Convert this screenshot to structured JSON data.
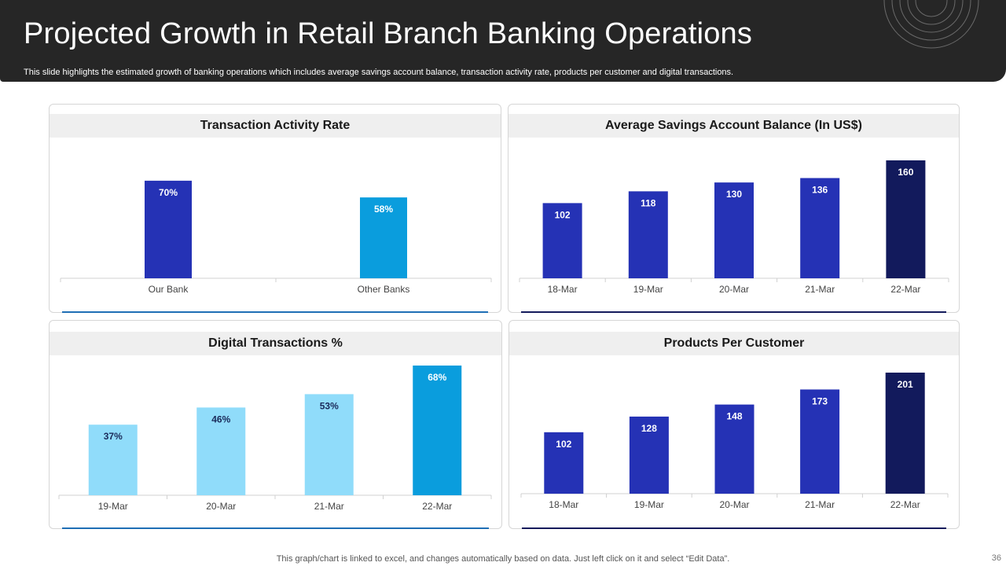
{
  "header": {
    "title": "Projected Growth in Retail Branch Banking Operations",
    "subtitle": "This slide highlights the estimated growth of banking operations which includes average savings account balance, transaction activity rate,  products per customer and digital transactions."
  },
  "footer": {
    "note": "This graph/chart is linked to excel,  and changes automatically based on data. Just left click on it and select “Edit Data”.",
    "page_number": "36"
  },
  "chart_data": [
    {
      "type": "bar",
      "title": "Transaction Activity Rate",
      "categories": [
        "Our Bank",
        "Other Banks"
      ],
      "values": [
        70,
        58
      ],
      "labels": [
        "70%",
        "58%"
      ],
      "colors": [
        "#2532b5",
        "#0a9ddd"
      ],
      "ylim": [
        0,
        75
      ],
      "xlabel": "",
      "ylabel": "",
      "accent": "#1f6fb5"
    },
    {
      "type": "bar",
      "title": "Average Savings Account Balance (In US$)",
      "categories": [
        "18-Mar",
        "19-Mar",
        "20-Mar",
        "21-Mar",
        "22-Mar"
      ],
      "values": [
        102,
        118,
        130,
        136,
        160
      ],
      "labels": [
        "102",
        "118",
        "130",
        "136",
        "160"
      ],
      "colors": [
        "#2532b5",
        "#2532b5",
        "#2532b5",
        "#2532b5",
        "#121a5c"
      ],
      "ylim": [
        0,
        160
      ],
      "xlabel": "",
      "ylabel": "",
      "accent": "#141b5c"
    },
    {
      "type": "bar",
      "title": "Digital Transactions %",
      "categories": [
        "19-Mar",
        "20-Mar",
        "21-Mar",
        "22-Mar"
      ],
      "values": [
        37,
        46,
        53,
        68
      ],
      "labels": [
        "37%",
        "46%",
        "53%",
        "68%"
      ],
      "colors": [
        "#90dcfa",
        "#90dcfa",
        "#90dcfa",
        "#0a9ddd"
      ],
      "ylim": [
        0,
        68
      ],
      "xlabel": "",
      "ylabel": "",
      "accent": "#1f6fb5"
    },
    {
      "type": "bar",
      "title": "Products Per Customer",
      "categories": [
        "18-Mar",
        "19-Mar",
        "20-Mar",
        "21-Mar",
        "22-Mar"
      ],
      "values": [
        102,
        128,
        148,
        173,
        201
      ],
      "labels": [
        "102",
        "128",
        "148",
        "173",
        "201"
      ],
      "colors": [
        "#2532b5",
        "#2532b5",
        "#2532b5",
        "#2532b5",
        "#121a5c"
      ],
      "ylim": [
        0,
        201
      ],
      "xlabel": "",
      "ylabel": "",
      "accent": "#141b5c"
    }
  ]
}
